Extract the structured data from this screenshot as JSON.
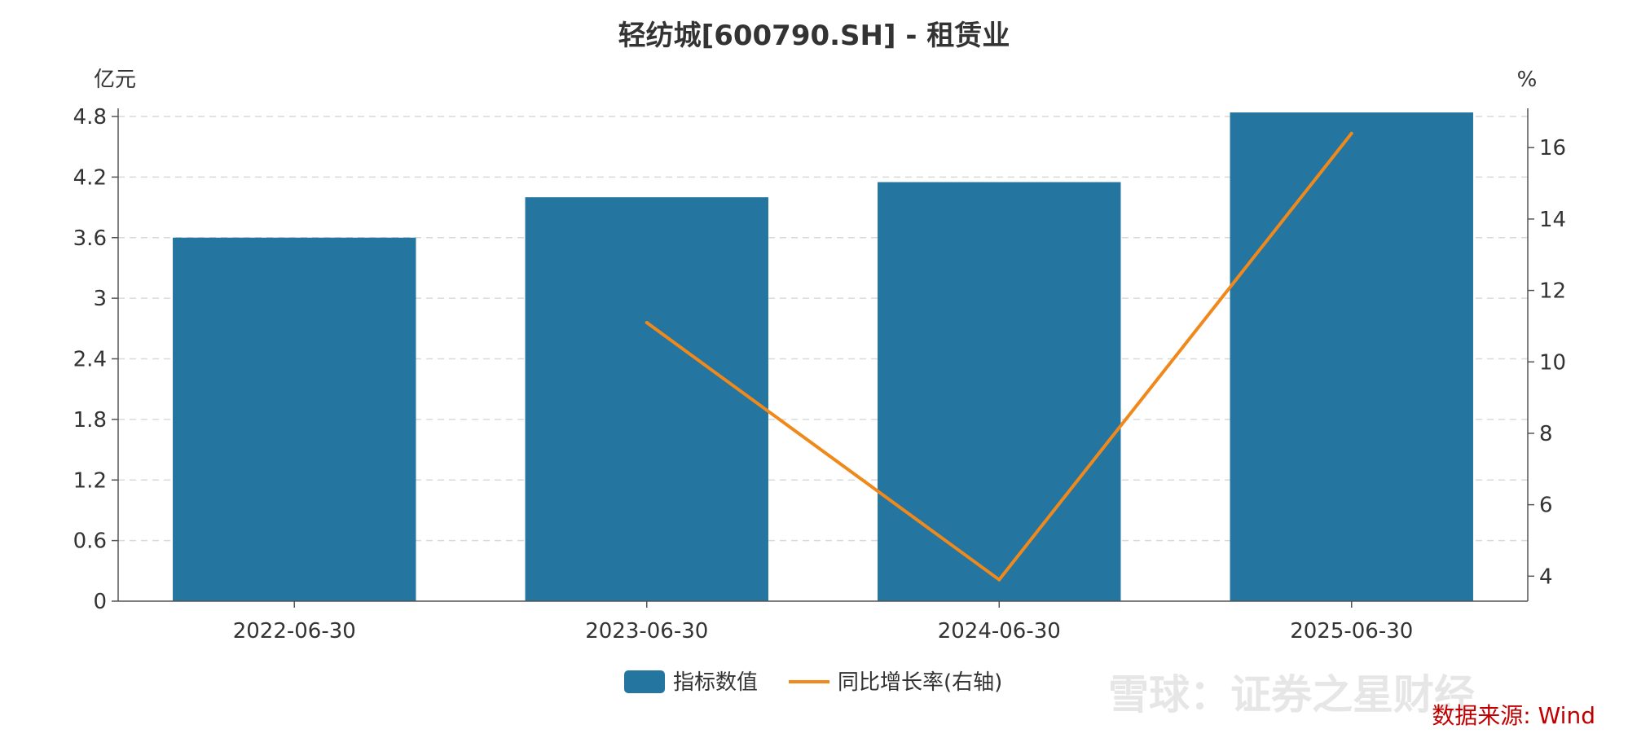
{
  "chart_data": {
    "type": "bar",
    "title": "轻纺城[600790.SH] - 租赁业",
    "left_unit": "亿元",
    "right_unit": "%",
    "categories": [
      "2022-06-30",
      "2023-06-30",
      "2024-06-30",
      "2025-06-30"
    ],
    "series": [
      {
        "name": "指标数值",
        "type": "bar",
        "axis": "left",
        "color": "#2475a0",
        "values": [
          3.6,
          4.0,
          4.15,
          4.84
        ]
      },
      {
        "name": "同比增长率(右轴)",
        "type": "line",
        "axis": "right",
        "color": "#f0891c",
        "values": [
          null,
          11.1,
          3.9,
          16.4
        ]
      }
    ],
    "y_left": {
      "min": 0,
      "max": 4.8,
      "ticks": [
        "0",
        "0.6",
        "1.2",
        "1.8",
        "2.4",
        "3",
        "3.6",
        "4.2",
        "4.8"
      ]
    },
    "y_right": {
      "min": 3.3,
      "max": 17.1,
      "ticks": [
        "4",
        "6",
        "8",
        "10",
        "12",
        "14",
        "16"
      ]
    },
    "grid": true,
    "legend_position": "bottom-center"
  },
  "source": "数据来源: Wind",
  "watermark": "雪球：证券之星财经"
}
